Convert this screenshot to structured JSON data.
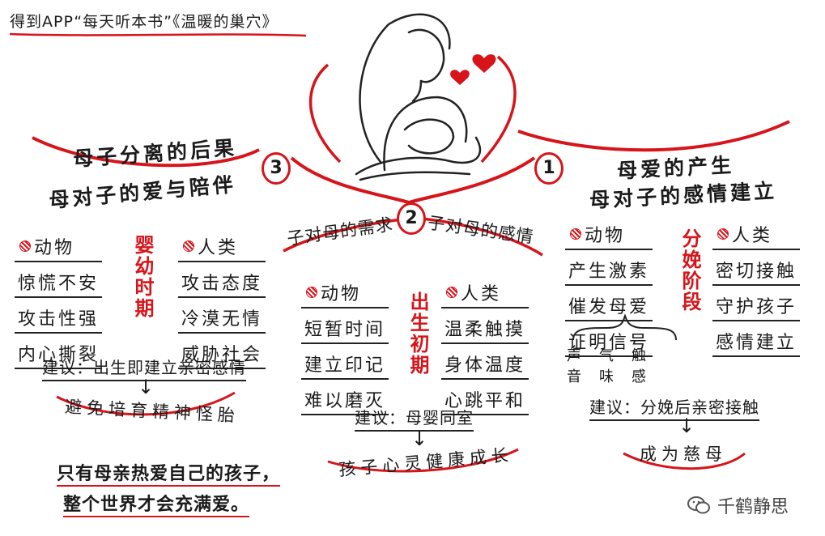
{
  "header": {
    "title": "得到APP“每天听本书”《温暖的巢穴》"
  },
  "watermark": {
    "text": "千鹤静思"
  },
  "colors": {
    "accent": "#d7141a",
    "ink": "#1a1a1a"
  },
  "branch1": {
    "number": "1",
    "title_line1": "母爱的产生",
    "title_line2": "母对子的感情建立",
    "stage_label": "分娩阶段",
    "animal_header": "动物",
    "animal_items": [
      "产生激素",
      "催发母爱",
      "证明信号"
    ],
    "senses_top": "声　气　触",
    "senses_bottom": "音　味　感",
    "human_header": "人类",
    "human_items": [
      "密切接触",
      "守护孩子",
      "感情建立"
    ],
    "suggestion": "建议：分娩后亲密接触",
    "outcome": "成为慈母"
  },
  "branch2": {
    "number": "2",
    "title_left": "子对母的需求",
    "title_right": "子对母的感情",
    "stage_label": "出生初期",
    "animal_header": "动物",
    "animal_items": [
      "短暂时间",
      "建立印记",
      "难以磨灭"
    ],
    "human_header": "人类",
    "human_items": [
      "温柔触摸",
      "身体温度",
      "心跳平和"
    ],
    "suggestion": "建议：母婴同室",
    "outcome": "孩子心灵健康成长"
  },
  "branch3": {
    "number": "3",
    "title_line1": "母子分离的后果",
    "title_line2": "母对子的爱与陪伴",
    "stage_label": "婴幼时期",
    "animal_header": "动物",
    "animal_items": [
      "惊慌不安",
      "攻击性强",
      "内心撕裂"
    ],
    "human_header": "人类",
    "human_items": [
      "攻击态度",
      "冷漠无情",
      "威胁社会"
    ],
    "suggestion": "建议：出生即建立亲密感情",
    "outcome": "避免培育精神怪胎"
  },
  "quote": {
    "line1": "只有母亲热爱自己的孩子，",
    "line2": "整个世界才会充满爱。"
  }
}
